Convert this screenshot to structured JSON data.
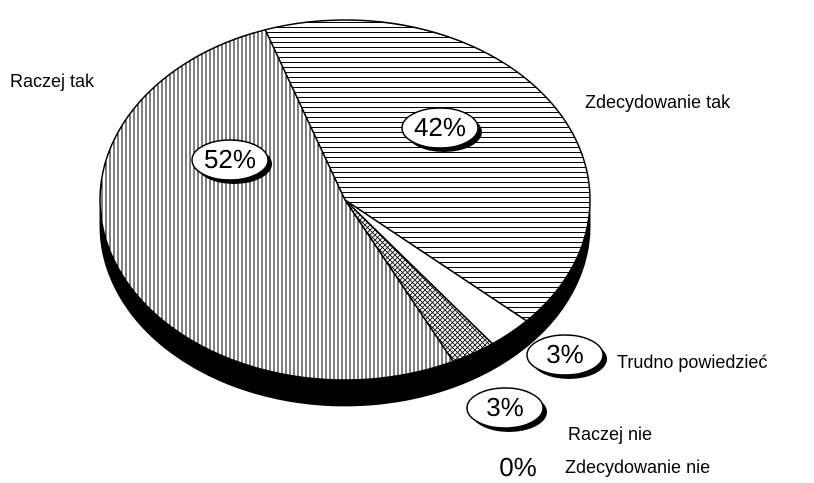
{
  "chart_data": {
    "type": "pie",
    "categories": [
      "Zdecydowanie tak",
      "Trudno powiedzieć",
      "Raczej nie",
      "Zdecydowanie nie",
      "Raczej tak"
    ],
    "values": [
      42,
      3,
      3,
      0,
      52
    ],
    "value_labels": [
      "42%",
      "3%",
      "3%",
      "0%",
      "52%"
    ],
    "hatch": [
      "horizontal",
      "none",
      "cross",
      "none",
      "vertical"
    ],
    "color": "#000000"
  }
}
